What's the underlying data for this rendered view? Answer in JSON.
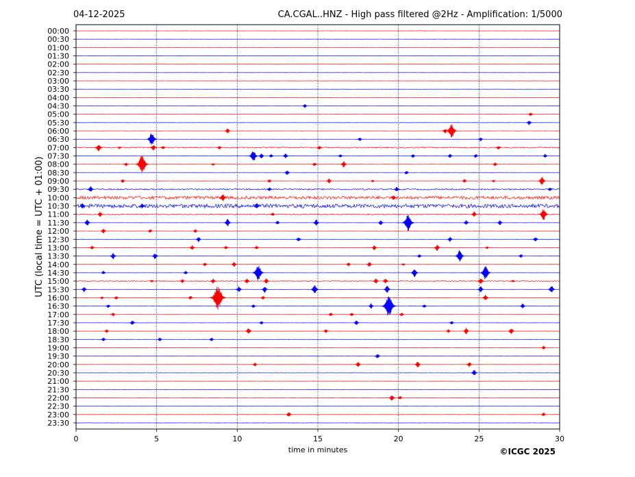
{
  "chart_data": {
    "type": "line",
    "title_left": "04-12-2025",
    "title_right": "CA.CGAL..HNZ - High pass filtered @2Hz - Amplification: 1/5000",
    "xlabel": "time in minutes",
    "ylabel": "UTC (local time = UTC + 01:00)",
    "xlim": [
      0,
      30
    ],
    "x_ticks": [
      "0",
      "5",
      "10",
      "15",
      "20",
      "25",
      "30"
    ],
    "rows": [
      "00:00",
      "00:30",
      "01:00",
      "01:30",
      "02:00",
      "02:30",
      "03:00",
      "03:30",
      "04:00",
      "04:30",
      "05:00",
      "05:30",
      "06:00",
      "06:30",
      "07:00",
      "07:30",
      "08:00",
      "08:30",
      "09:00",
      "09:30",
      "10:00",
      "10:30",
      "11:00",
      "11:30",
      "12:00",
      "12:30",
      "13:00",
      "13:30",
      "14:00",
      "14:30",
      "15:00",
      "15:30",
      "16:00",
      "16:30",
      "17:00",
      "17:30",
      "18:00",
      "18:30",
      "19:00",
      "19:30",
      "20:00",
      "20:30",
      "21:00",
      "21:30",
      "22:00",
      "22:30",
      "23:00",
      "23:30"
    ],
    "grid": "vertical dotted lines every 5 minutes",
    "colors": {
      "even_rows": "#ff0000",
      "odd_rows": "#0000ff",
      "grid": "#000080"
    },
    "events": [
      {
        "row": "04:30",
        "t": 14.2,
        "amp": 3
      },
      {
        "row": "05:00",
        "t": 28.2,
        "amp": 3
      },
      {
        "row": "05:30",
        "t": 28.1,
        "amp": 4
      },
      {
        "row": "06:00",
        "t": 9.4,
        "amp": 4
      },
      {
        "row": "06:00",
        "t": 22.9,
        "amp": 4
      },
      {
        "row": "06:00",
        "t": 23.3,
        "amp": 11
      },
      {
        "row": "06:30",
        "t": 4.7,
        "amp": 10
      },
      {
        "row": "06:30",
        "t": 17.6,
        "amp": 3
      },
      {
        "row": "06:30",
        "t": 25.1,
        "amp": 3
      },
      {
        "row": "07:00",
        "t": 1.4,
        "amp": 6
      },
      {
        "row": "07:00",
        "t": 2.7,
        "amp": 2
      },
      {
        "row": "07:00",
        "t": 4.8,
        "amp": 5
      },
      {
        "row": "07:00",
        "t": 5.4,
        "amp": 3
      },
      {
        "row": "07:00",
        "t": 8.9,
        "amp": 3
      },
      {
        "row": "07:00",
        "t": 15.1,
        "amp": 3
      },
      {
        "row": "07:00",
        "t": 26.2,
        "amp": 3
      },
      {
        "row": "07:30",
        "t": 11.0,
        "amp": 9
      },
      {
        "row": "07:30",
        "t": 11.5,
        "amp": 4
      },
      {
        "row": "07:30",
        "t": 12.1,
        "amp": 3
      },
      {
        "row": "07:30",
        "t": 13.0,
        "amp": 4
      },
      {
        "row": "07:30",
        "t": 16.4,
        "amp": 3
      },
      {
        "row": "07:30",
        "t": 20.9,
        "amp": 3
      },
      {
        "row": "07:30",
        "t": 23.2,
        "amp": 3
      },
      {
        "row": "07:30",
        "t": 24.8,
        "amp": 3
      },
      {
        "row": "07:30",
        "t": 29.1,
        "amp": 3
      },
      {
        "row": "08:00",
        "t": 3.1,
        "amp": 3
      },
      {
        "row": "08:00",
        "t": 4.1,
        "amp": 14
      },
      {
        "row": "08:00",
        "t": 8.5,
        "amp": 2
      },
      {
        "row": "08:00",
        "t": 14.8,
        "amp": 3
      },
      {
        "row": "08:00",
        "t": 16.6,
        "amp": 5
      },
      {
        "row": "08:00",
        "t": 26.0,
        "amp": 3
      },
      {
        "row": "08:30",
        "t": 13.1,
        "amp": 4
      },
      {
        "row": "08:30",
        "t": 20.5,
        "amp": 3
      },
      {
        "row": "09:00",
        "t": 2.9,
        "amp": 3
      },
      {
        "row": "09:00",
        "t": 12.0,
        "amp": 3
      },
      {
        "row": "09:00",
        "t": 15.7,
        "amp": 4
      },
      {
        "row": "09:00",
        "t": 18.4,
        "amp": 2
      },
      {
        "row": "09:00",
        "t": 24.1,
        "amp": 3
      },
      {
        "row": "09:00",
        "t": 25.9,
        "amp": 2
      },
      {
        "row": "09:00",
        "t": 28.9,
        "amp": 7
      },
      {
        "row": "09:30",
        "t": 0.9,
        "amp": 5
      },
      {
        "row": "09:30",
        "t": 12.0,
        "amp": 3
      },
      {
        "row": "09:30",
        "t": 19.9,
        "amp": 4
      },
      {
        "row": "09:30",
        "t": 29.4,
        "amp": 3
      },
      {
        "row": "10:00",
        "t": 9.1,
        "amp": 6
      },
      {
        "row": "10:00",
        "t": 19.7,
        "amp": 4
      },
      {
        "row": "10:30",
        "t": 0.4,
        "amp": 4
      },
      {
        "row": "10:30",
        "t": 4.1,
        "amp": 4
      },
      {
        "row": "10:30",
        "t": 11.2,
        "amp": 5
      },
      {
        "row": "11:00",
        "t": 1.5,
        "amp": 4
      },
      {
        "row": "11:00",
        "t": 12.2,
        "amp": 3
      },
      {
        "row": "11:00",
        "t": 24.7,
        "amp": 4
      },
      {
        "row": "11:00",
        "t": 29.0,
        "amp": 9
      },
      {
        "row": "11:30",
        "t": 0.7,
        "amp": 5
      },
      {
        "row": "11:30",
        "t": 9.4,
        "amp": 6
      },
      {
        "row": "11:30",
        "t": 12.5,
        "amp": 3
      },
      {
        "row": "11:30",
        "t": 14.9,
        "amp": 5
      },
      {
        "row": "11:30",
        "t": 18.9,
        "amp": 4
      },
      {
        "row": "11:30",
        "t": 20.6,
        "amp": 13
      },
      {
        "row": "11:30",
        "t": 24.2,
        "amp": 4
      },
      {
        "row": "11:30",
        "t": 26.3,
        "amp": 4
      },
      {
        "row": "12:00",
        "t": 1.7,
        "amp": 4
      },
      {
        "row": "12:00",
        "t": 4.6,
        "amp": 3
      },
      {
        "row": "12:00",
        "t": 7.4,
        "amp": 3
      },
      {
        "row": "12:30",
        "t": 7.6,
        "amp": 4
      },
      {
        "row": "12:30",
        "t": 13.8,
        "amp": 4
      },
      {
        "row": "12:30",
        "t": 23.2,
        "amp": 4
      },
      {
        "row": "12:30",
        "t": 28.5,
        "amp": 4
      },
      {
        "row": "13:00",
        "t": 1.0,
        "amp": 3
      },
      {
        "row": "13:00",
        "t": 7.2,
        "amp": 4
      },
      {
        "row": "13:00",
        "t": 9.3,
        "amp": 3
      },
      {
        "row": "13:00",
        "t": 11.2,
        "amp": 3
      },
      {
        "row": "13:00",
        "t": 18.5,
        "amp": 4
      },
      {
        "row": "13:00",
        "t": 22.4,
        "amp": 5
      },
      {
        "row": "13:00",
        "t": 25.5,
        "amp": 2
      },
      {
        "row": "13:30",
        "t": 2.3,
        "amp": 5
      },
      {
        "row": "13:30",
        "t": 4.9,
        "amp": 5
      },
      {
        "row": "13:30",
        "t": 21.3,
        "amp": 3
      },
      {
        "row": "13:30",
        "t": 23.8,
        "amp": 9
      },
      {
        "row": "13:30",
        "t": 27.6,
        "amp": 3
      },
      {
        "row": "14:00",
        "t": 8.0,
        "amp": 3
      },
      {
        "row": "14:00",
        "t": 9.8,
        "amp": 4
      },
      {
        "row": "14:00",
        "t": 16.9,
        "amp": 3
      },
      {
        "row": "14:00",
        "t": 18.2,
        "amp": 4
      },
      {
        "row": "14:00",
        "t": 20.3,
        "amp": 2
      },
      {
        "row": "14:30",
        "t": 1.7,
        "amp": 3
      },
      {
        "row": "14:30",
        "t": 6.8,
        "amp": 3
      },
      {
        "row": "14:30",
        "t": 11.3,
        "amp": 12
      },
      {
        "row": "14:30",
        "t": 21.0,
        "amp": 7
      },
      {
        "row": "14:30",
        "t": 25.4,
        "amp": 11
      },
      {
        "row": "15:00",
        "t": 4.7,
        "amp": 2
      },
      {
        "row": "15:00",
        "t": 6.6,
        "amp": 3
      },
      {
        "row": "15:00",
        "t": 8.5,
        "amp": 4
      },
      {
        "row": "15:00",
        "t": 10.6,
        "amp": 4
      },
      {
        "row": "15:00",
        "t": 11.8,
        "amp": 4
      },
      {
        "row": "15:00",
        "t": 18.6,
        "amp": 4
      },
      {
        "row": "15:00",
        "t": 19.2,
        "amp": 4
      },
      {
        "row": "15:00",
        "t": 25.1,
        "amp": 5
      },
      {
        "row": "15:00",
        "t": 27.1,
        "amp": 2
      },
      {
        "row": "15:30",
        "t": 0.5,
        "amp": 4
      },
      {
        "row": "15:30",
        "t": 10.1,
        "amp": 5
      },
      {
        "row": "15:30",
        "t": 11.7,
        "amp": 5
      },
      {
        "row": "15:30",
        "t": 14.8,
        "amp": 7
      },
      {
        "row": "15:30",
        "t": 19.3,
        "amp": 6
      },
      {
        "row": "15:30",
        "t": 25.1,
        "amp": 5
      },
      {
        "row": "15:30",
        "t": 29.5,
        "amp": 6
      },
      {
        "row": "16:00",
        "t": 1.6,
        "amp": 2
      },
      {
        "row": "16:00",
        "t": 2.5,
        "amp": 3
      },
      {
        "row": "16:00",
        "t": 7.1,
        "amp": 3
      },
      {
        "row": "16:00",
        "t": 8.8,
        "amp": 18
      },
      {
        "row": "16:00",
        "t": 11.6,
        "amp": 3
      },
      {
        "row": "16:00",
        "t": 25.4,
        "amp": 5
      },
      {
        "row": "16:30",
        "t": 2.0,
        "amp": 3
      },
      {
        "row": "16:30",
        "t": 11.0,
        "amp": 3
      },
      {
        "row": "16:30",
        "t": 18.3,
        "amp": 4
      },
      {
        "row": "16:30",
        "t": 19.4,
        "amp": 16
      },
      {
        "row": "16:30",
        "t": 21.6,
        "amp": 3
      },
      {
        "row": "16:30",
        "t": 27.7,
        "amp": 4
      },
      {
        "row": "17:00",
        "t": 2.3,
        "amp": 3
      },
      {
        "row": "17:00",
        "t": 15.8,
        "amp": 3
      },
      {
        "row": "17:00",
        "t": 17.1,
        "amp": 3
      },
      {
        "row": "17:00",
        "t": 20.2,
        "amp": 3
      },
      {
        "row": "17:30",
        "t": 3.5,
        "amp": 4
      },
      {
        "row": "17:30",
        "t": 11.5,
        "amp": 3
      },
      {
        "row": "17:30",
        "t": 17.4,
        "amp": 4
      },
      {
        "row": "17:30",
        "t": 23.3,
        "amp": 3
      },
      {
        "row": "18:00",
        "t": 1.9,
        "amp": 3
      },
      {
        "row": "18:00",
        "t": 10.7,
        "amp": 5
      },
      {
        "row": "18:00",
        "t": 15.5,
        "amp": 3
      },
      {
        "row": "18:00",
        "t": 23.1,
        "amp": 3
      },
      {
        "row": "18:00",
        "t": 24.2,
        "amp": 5
      },
      {
        "row": "18:00",
        "t": 27.0,
        "amp": 5
      },
      {
        "row": "18:30",
        "t": 1.7,
        "amp": 3
      },
      {
        "row": "18:30",
        "t": 5.2,
        "amp": 3
      },
      {
        "row": "18:30",
        "t": 8.4,
        "amp": 3
      },
      {
        "row": "19:00",
        "t": 29.0,
        "amp": 3
      },
      {
        "row": "19:30",
        "t": 18.7,
        "amp": 4
      },
      {
        "row": "20:00",
        "t": 11.1,
        "amp": 3
      },
      {
        "row": "20:00",
        "t": 17.5,
        "amp": 4
      },
      {
        "row": "20:00",
        "t": 21.2,
        "amp": 5
      },
      {
        "row": "20:00",
        "t": 24.4,
        "amp": 4
      },
      {
        "row": "20:30",
        "t": 24.7,
        "amp": 5
      },
      {
        "row": "22:00",
        "t": 19.6,
        "amp": 5
      },
      {
        "row": "22:00",
        "t": 20.1,
        "amp": 3
      },
      {
        "row": "23:00",
        "t": 13.2,
        "amp": 4
      },
      {
        "row": "23:00",
        "t": 29.0,
        "amp": 3
      }
    ],
    "noisy_rows": [
      {
        "row": "10:00",
        "level": 2.2
      },
      {
        "row": "10:30",
        "level": 2.8
      },
      {
        "row": "07:00",
        "level": 0.8
      },
      {
        "row": "09:30",
        "level": 0.9
      },
      {
        "row": "11:00",
        "level": 0.7
      },
      {
        "row": "15:00",
        "level": 0.6
      }
    ]
  },
  "copyright": "©ICGC 2025"
}
